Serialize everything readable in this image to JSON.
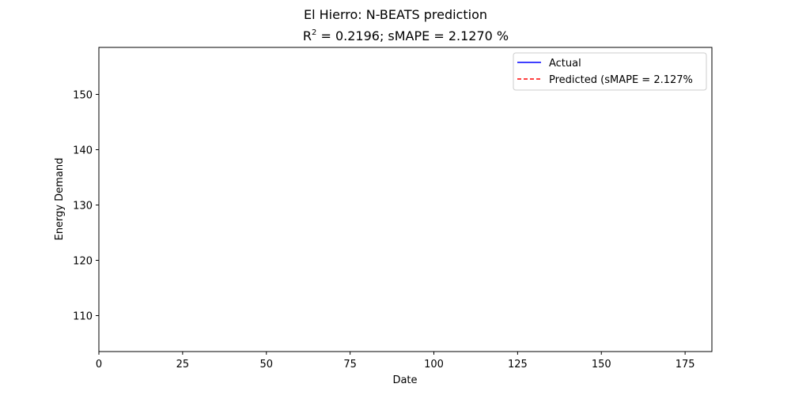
{
  "chart_data": {
    "type": "line",
    "suptitle": "El Hierro: N-BEATS prediction",
    "title_r2_label": "R",
    "title_r2_sup": "2",
    "title_rest": " = 0.2196; sMAPE = 2.1270 %",
    "xlabel": "Date",
    "ylabel": "Energy Demand",
    "xlim": [
      0,
      183
    ],
    "ylim": [
      103.5,
      158.5
    ],
    "xticks": [
      0,
      25,
      50,
      75,
      100,
      125,
      150,
      175
    ],
    "yticks": [
      110,
      120,
      130,
      140,
      150
    ],
    "grid": false,
    "legend_position": "top-right",
    "series": [
      {
        "name": "Actual",
        "color": "#0000ff",
        "style": "solid",
        "x": [],
        "y": []
      },
      {
        "name": "Predicted (sMAPE = 2.127%",
        "color": "#ff0000",
        "style": "dashed",
        "x": [],
        "y": []
      }
    ]
  }
}
